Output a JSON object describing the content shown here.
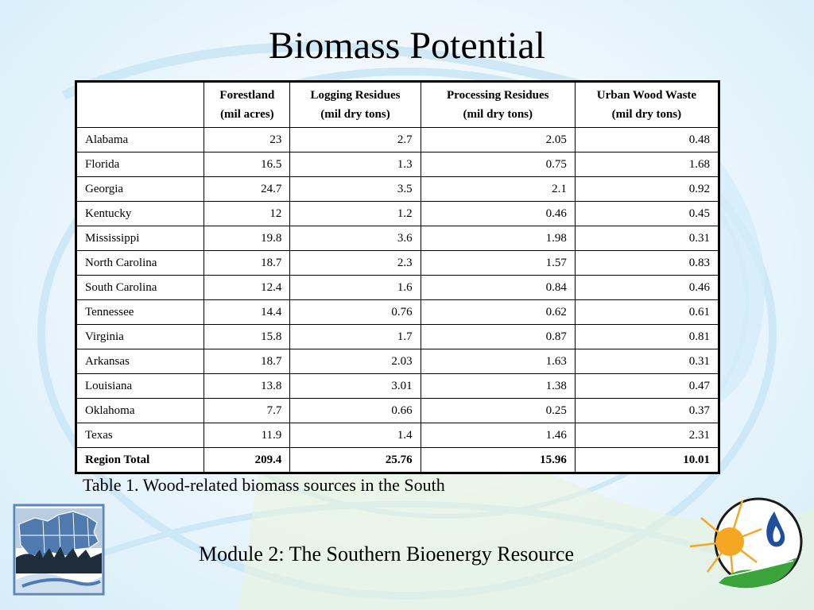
{
  "slide": {
    "title": "Biomass Potential",
    "caption": "Table 1. Wood-related biomass sources in the South",
    "footer": "Module 2:  The Southern Bioenergy Resource"
  },
  "table": {
    "headers": [
      {
        "name": "",
        "unit": ""
      },
      {
        "name": "Forestland",
        "unit": "(mil acres)"
      },
      {
        "name": "Logging Residues",
        "unit": "(mil dry tons)"
      },
      {
        "name": "Processing Residues",
        "unit": "(mil dry tons)"
      },
      {
        "name": "Urban Wood Waste",
        "unit": "(mil dry tons)"
      }
    ],
    "rows": [
      [
        "Alabama",
        "23",
        "2.7",
        "2.05",
        "0.48"
      ],
      [
        "Florida",
        "16.5",
        "1.3",
        "0.75",
        "1.68"
      ],
      [
        "Georgia",
        "24.7",
        "3.5",
        "2.1",
        "0.92"
      ],
      [
        "Kentucky",
        "12",
        "1.2",
        "0.46",
        "0.45"
      ],
      [
        "Mississippi",
        "19.8",
        "3.6",
        "1.98",
        "0.31"
      ],
      [
        "North Carolina",
        "18.7",
        "2.3",
        "1.57",
        "0.83"
      ],
      [
        "South Carolina",
        "12.4",
        "1.6",
        "0.84",
        "0.46"
      ],
      [
        "Tennessee",
        "14.4",
        "0.76",
        "0.62",
        "0.61"
      ],
      [
        "Virginia",
        "15.8",
        "1.7",
        "0.87",
        "0.81"
      ],
      [
        "Arkansas",
        "18.7",
        "2.03",
        "1.63",
        "0.31"
      ],
      [
        "Louisiana",
        "13.8",
        "3.01",
        "1.38",
        "0.47"
      ],
      [
        "Oklahoma",
        "7.7",
        "0.66",
        "0.25",
        "0.37"
      ],
      [
        "Texas",
        "11.9",
        "1.4",
        "1.46",
        "2.31"
      ]
    ],
    "total": [
      "Region Total",
      "209.4",
      "25.76",
      "15.96",
      "10.01"
    ]
  },
  "logos": {
    "left": "southern-region-map-logo",
    "right": "sun-flame-leaf-logo"
  },
  "colors": {
    "background": "#e3f3fc",
    "sun": "#f5a623",
    "flame": "#1d4f9c",
    "leaf": "#3aa33a"
  }
}
